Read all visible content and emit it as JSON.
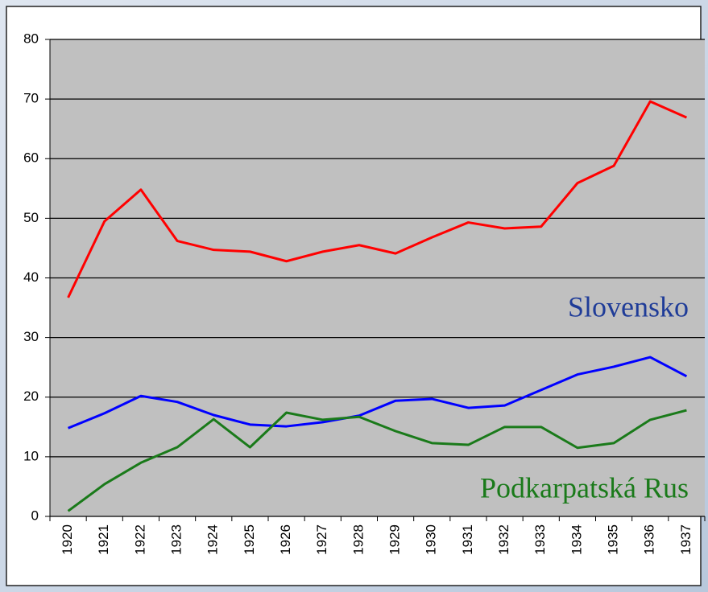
{
  "chart_data": {
    "type": "line",
    "categories": [
      "1920",
      "1921",
      "1922",
      "1923",
      "1924",
      "1925",
      "1926",
      "1927",
      "1928",
      "1929",
      "1930",
      "1931",
      "1932",
      "1933",
      "1934",
      "1935",
      "1936",
      "1937"
    ],
    "series": [
      {
        "color": "#ff0000",
        "values": [
          36.7,
          49.5,
          54.8,
          46.2,
          44.7,
          44.4,
          42.8,
          44.4,
          45.5,
          44.1,
          46.8,
          49.3,
          48.3,
          48.6,
          55.9,
          58.8,
          69.6,
          66.9
        ]
      },
      {
        "name": "Slovensko",
        "color": "#0000ff",
        "label_color": "#1f3c98",
        "values": [
          14.8,
          17.3,
          20.2,
          19.2,
          17.0,
          15.4,
          15.1,
          15.8,
          16.9,
          19.4,
          19.7,
          18.2,
          18.6,
          21.2,
          23.8,
          25.1,
          26.7,
          23.5
        ]
      },
      {
        "name": "Podkarpatská Rus",
        "color": "#1a7a1a",
        "label_color": "#1a7a1a",
        "values": [
          0.9,
          5.4,
          9.0,
          11.6,
          16.3,
          11.6,
          17.4,
          16.2,
          16.7,
          14.3,
          12.3,
          12.0,
          15.0,
          15.0,
          11.5,
          12.3,
          16.2,
          17.8
        ]
      }
    ],
    "ylim": [
      0,
      80
    ],
    "yticks": [
      0,
      10,
      20,
      30,
      40,
      50,
      60,
      70,
      80
    ],
    "grid": true
  }
}
